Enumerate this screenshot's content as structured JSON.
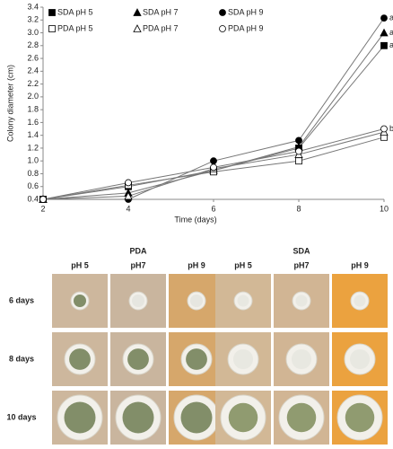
{
  "chart_data": {
    "type": "line",
    "xlabel": "Time (days)",
    "ylabel": "Colony diameter (cm)",
    "x": [
      2,
      4,
      6,
      8,
      10
    ],
    "xlim": [
      2,
      10
    ],
    "xticks": [
      2,
      4,
      6,
      8,
      10
    ],
    "ylim": [
      0.4,
      3.4
    ],
    "yticks": [
      0.4,
      0.6,
      0.8,
      {
        "value": 1.0,
        "label": "1.0"
      },
      1.2,
      1.4,
      1.6,
      1.8,
      {
        "value": 2.0,
        "label": "2.0"
      },
      2.2,
      2.4,
      2.6,
      2.8,
      {
        "value": 3.0,
        "label": "3.0"
      },
      3.2,
      3.4
    ],
    "legend": "upper left",
    "series": [
      {
        "name": "SDA pH 5",
        "marker": "square",
        "color": "#000000",
        "values": [
          0.4,
          0.6,
          0.85,
          1.2,
          2.8
        ],
        "end_label": "a"
      },
      {
        "name": "SDA pH 7",
        "marker": "triangle",
        "color": "#000000",
        "values": [
          0.4,
          0.5,
          0.85,
          1.22,
          3.0
        ],
        "end_label": "a"
      },
      {
        "name": "SDA pH 9",
        "marker": "circle",
        "color": "#000000",
        "values": [
          0.4,
          0.4,
          1.0,
          1.32,
          3.23
        ],
        "end_label": "a"
      },
      {
        "name": "PDA pH 5",
        "marker": "square",
        "color": "#ffffff",
        "values": [
          0.4,
          0.62,
          0.83,
          1.0,
          1.37
        ]
      },
      {
        "name": "PDA pH 7",
        "marker": "triangle",
        "color": "#ffffff",
        "values": [
          0.4,
          0.45,
          0.88,
          1.1,
          1.45
        ]
      },
      {
        "name": "PDA pH 9",
        "marker": "circle",
        "color": "#ffffff",
        "values": [
          0.4,
          0.66,
          0.9,
          1.15,
          1.5
        ],
        "end_label": "b"
      }
    ]
  },
  "panel": {
    "groups": [
      {
        "label": "PDA",
        "columns": [
          "pH 5",
          "pH7",
          "pH 9"
        ]
      },
      {
        "label": "SDA",
        "columns": [
          "pH 5",
          "pH7",
          "pH 9"
        ]
      }
    ],
    "rows": [
      "6 days",
      "8 days",
      "10 days"
    ]
  }
}
